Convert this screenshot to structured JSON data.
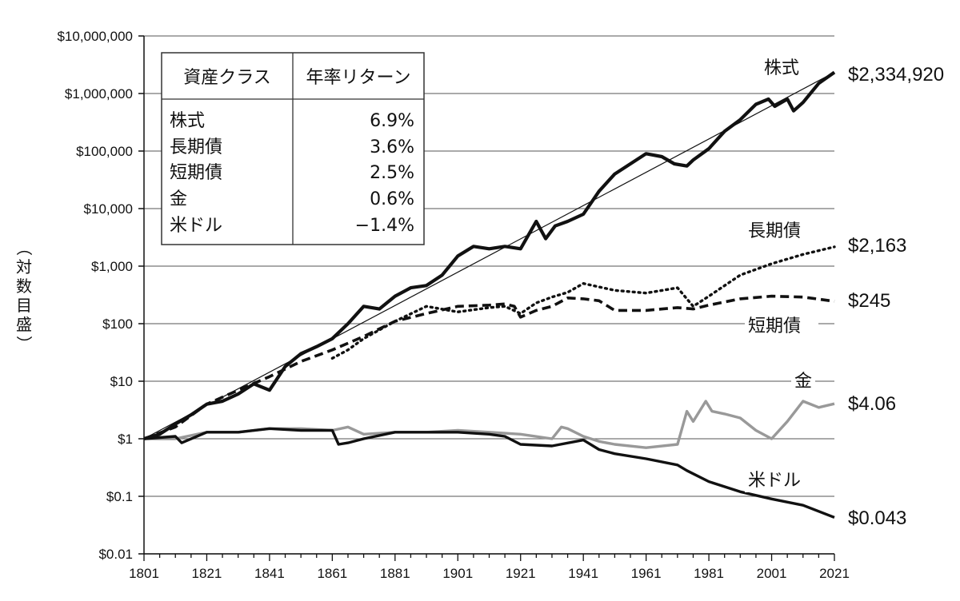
{
  "chart_data": {
    "type": "line",
    "yscale": "log",
    "ylabel": "（対数目盛）",
    "ylabel_chars": [
      "（",
      "対",
      "数",
      "目",
      "盛",
      "）"
    ],
    "ylim": [
      0.01,
      10000000
    ],
    "xlim": [
      1801,
      2021
    ],
    "x_ticks": [
      "1801",
      "1821",
      "1841",
      "1861",
      "1881",
      "1901",
      "1921",
      "1941",
      "1961",
      "1981",
      "2001",
      "2021"
    ],
    "y_ticks": [
      {
        "value": 0.01,
        "label": "$0.01"
      },
      {
        "value": 0.1,
        "label": "$0.1"
      },
      {
        "value": 1,
        "label": "$1"
      },
      {
        "value": 10,
        "label": "$10"
      },
      {
        "value": 100,
        "label": "$100"
      },
      {
        "value": 1000,
        "label": "$1,000"
      },
      {
        "value": 10000,
        "label": "$10,000"
      },
      {
        "value": 100000,
        "label": "$100,000"
      },
      {
        "value": 1000000,
        "label": "$1,000,000"
      },
      {
        "value": 10000000,
        "label": "$10,000,000"
      }
    ],
    "table": {
      "headers": [
        "資産クラス",
        "年率リターン"
      ],
      "rows": [
        {
          "asset": "株式",
          "return": "6.9%"
        },
        {
          "asset": "長期債",
          "return": "3.6%"
        },
        {
          "asset": "短期債",
          "return": "2.5%"
        },
        {
          "asset": "金",
          "return": "0.6%"
        },
        {
          "asset": "米ドル",
          "return": "−1.4%"
        }
      ]
    },
    "trend_line": {
      "name": "株式トレンド",
      "x": [
        1801,
        2021
      ],
      "y": [
        1,
        2334920
      ]
    },
    "series": [
      {
        "name": "株式",
        "end_label": "$2,334,920",
        "color": "#111111",
        "style": "solid-thick",
        "x": [
          1801,
          1806,
          1811,
          1816,
          1821,
          1826,
          1831,
          1836,
          1841,
          1846,
          1851,
          1856,
          1861,
          1866,
          1871,
          1876,
          1881,
          1886,
          1891,
          1896,
          1901,
          1906,
          1911,
          1916,
          1921,
          1926,
          1929,
          1932,
          1936,
          1941,
          1946,
          1951,
          1956,
          1961,
          1966,
          1970,
          1974,
          1976,
          1981,
          1986,
          1991,
          1996,
          2000,
          2002,
          2006,
          2008,
          2011,
          2016,
          2021
        ],
        "y": [
          1,
          1.2,
          1.8,
          2.6,
          4,
          4.5,
          6,
          9,
          7,
          18,
          30,
          40,
          55,
          100,
          200,
          180,
          300,
          420,
          460,
          700,
          1500,
          2200,
          2000,
          2200,
          2000,
          6000,
          3000,
          5000,
          6000,
          8000,
          20000,
          40000,
          60000,
          90000,
          80000,
          60000,
          55000,
          70000,
          110000,
          220000,
          350000,
          650000,
          800000,
          600000,
          800000,
          500000,
          700000,
          1500000,
          2334920
        ]
      },
      {
        "name": "長期債",
        "end_label": "$2,163",
        "color": "#111111",
        "style": "dotted",
        "x": [
          1861,
          1866,
          1871,
          1881,
          1891,
          1901,
          1911,
          1916,
          1921,
          1926,
          1931,
          1936,
          1941,
          1951,
          1961,
          1971,
          1976,
          1981,
          1991,
          2001,
          2011,
          2021
        ],
        "y": [
          25,
          35,
          55,
          110,
          200,
          160,
          190,
          200,
          150,
          230,
          290,
          350,
          500,
          380,
          340,
          420,
          200,
          300,
          700,
          1100,
          1600,
          2163
        ]
      },
      {
        "name": "短期債",
        "end_label": "$245",
        "color": "#111111",
        "style": "dashed",
        "x": [
          1801,
          1811,
          1821,
          1831,
          1841,
          1851,
          1861,
          1871,
          1881,
          1891,
          1901,
          1911,
          1916,
          1919,
          1921,
          1926,
          1931,
          1936,
          1941,
          1946,
          1951,
          1961,
          1971,
          1976,
          1981,
          1991,
          2001,
          2011,
          2021
        ],
        "y": [
          1,
          1.6,
          4,
          7,
          12,
          22,
          35,
          60,
          110,
          150,
          200,
          210,
          220,
          200,
          130,
          170,
          200,
          280,
          270,
          250,
          170,
          170,
          190,
          180,
          210,
          270,
          300,
          290,
          245
        ]
      },
      {
        "name": "金",
        "end_label": "$4.06",
        "color": "#999999",
        "style": "solid",
        "x": [
          1801,
          1811,
          1821,
          1831,
          1841,
          1851,
          1861,
          1866,
          1871,
          1881,
          1891,
          1901,
          1911,
          1921,
          1931,
          1934,
          1936,
          1941,
          1946,
          1951,
          1961,
          1971,
          1974,
          1976,
          1980,
          1982,
          1986,
          1991,
          1996,
          2001,
          2006,
          2011,
          2016,
          2021
        ],
        "y": [
          1,
          1,
          1.3,
          1.3,
          1.5,
          1.5,
          1.4,
          1.6,
          1.2,
          1.3,
          1.3,
          1.4,
          1.3,
          1.2,
          1.0,
          1.6,
          1.5,
          1.1,
          0.9,
          0.8,
          0.7,
          0.8,
          3,
          2,
          4.5,
          3,
          2.7,
          2.3,
          1.4,
          1.0,
          2.0,
          4.5,
          3.5,
          4.06
        ]
      },
      {
        "name": "米ドル",
        "end_label": "$0.043",
        "color": "#111111",
        "style": "solid",
        "x": [
          1801,
          1811,
          1813,
          1821,
          1831,
          1841,
          1851,
          1861,
          1863,
          1866,
          1871,
          1881,
          1891,
          1901,
          1911,
          1916,
          1921,
          1931,
          1941,
          1946,
          1951,
          1961,
          1971,
          1974,
          1981,
          1991,
          2001,
          2011,
          2021
        ],
        "y": [
          1,
          1.1,
          0.85,
          1.3,
          1.3,
          1.5,
          1.4,
          1.4,
          0.8,
          0.85,
          1.0,
          1.3,
          1.3,
          1.3,
          1.2,
          1.1,
          0.8,
          0.75,
          0.95,
          0.65,
          0.55,
          0.45,
          0.35,
          0.28,
          0.18,
          0.12,
          0.09,
          0.07,
          0.043
        ]
      }
    ],
    "inline_labels": [
      "株式",
      "長期債",
      "短期債",
      "金",
      "米ドル"
    ]
  }
}
